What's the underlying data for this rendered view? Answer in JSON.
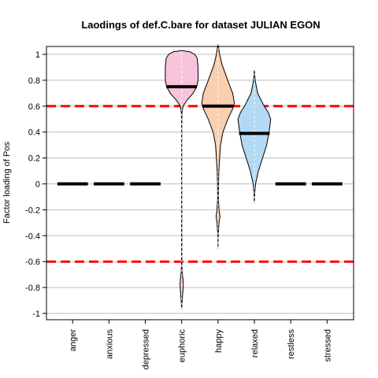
{
  "chart_data": {
    "type": "violin",
    "title": "Laodings of def.C.bare for dataset JULIAN EGON",
    "xlabel": "",
    "ylabel": "Factor loading of Pos",
    "ylim": [
      -1.05,
      1.08
    ],
    "yticks": [
      -1,
      -0.8,
      -0.6,
      -0.4,
      -0.2,
      0,
      0.2,
      0.4,
      0.6,
      0.8,
      1
    ],
    "ytick_labels": [
      "-1",
      "-0.8",
      "-0.6",
      "-0.4",
      "-0.2",
      "0",
      "0.2",
      "0.4",
      "0.6",
      "0.8",
      "1"
    ],
    "grid": true,
    "reference_lines": [
      0.6,
      -0.6
    ],
    "reference_line_color": "#ff0000",
    "categories": [
      "anger",
      "anxious",
      "depressed",
      "euphoric",
      "happy",
      "relaxed",
      "restless",
      "stressed"
    ],
    "medians": [
      0,
      0,
      0,
      0.75,
      0.6,
      0.39,
      0,
      0
    ],
    "violins": [
      {
        "category": "euphoric",
        "color": "#f7c4dc",
        "outline": "#000000",
        "profile": [
          [
            -0.97,
            0.0
          ],
          [
            -0.9,
            0.03
          ],
          [
            -0.82,
            0.08
          ],
          [
            -0.78,
            0.1
          ],
          [
            -0.74,
            0.08
          ],
          [
            -0.68,
            0.03
          ],
          [
            -0.62,
            0.01
          ],
          [
            0.0,
            0.005
          ],
          [
            0.45,
            0.005
          ],
          [
            0.55,
            0.02
          ],
          [
            0.6,
            0.08
          ],
          [
            0.65,
            0.35
          ],
          [
            0.7,
            0.7
          ],
          [
            0.75,
            0.92
          ],
          [
            0.8,
            1.0
          ],
          [
            0.9,
            1.0
          ],
          [
            0.97,
            0.95
          ],
          [
            1.0,
            0.8
          ],
          [
            1.02,
            0.5
          ],
          [
            1.03,
            0.0
          ]
        ]
      },
      {
        "category": "happy",
        "color": "#f9cfb0",
        "outline": "#000000",
        "profile": [
          [
            -0.5,
            0.0
          ],
          [
            -0.4,
            0.01
          ],
          [
            -0.3,
            0.06
          ],
          [
            -0.25,
            0.12
          ],
          [
            -0.2,
            0.06
          ],
          [
            -0.1,
            0.02
          ],
          [
            0.0,
            0.03
          ],
          [
            0.1,
            0.05
          ],
          [
            0.2,
            0.1
          ],
          [
            0.3,
            0.15
          ],
          [
            0.4,
            0.3
          ],
          [
            0.5,
            0.6
          ],
          [
            0.58,
            0.9
          ],
          [
            0.62,
            1.0
          ],
          [
            0.7,
            0.9
          ],
          [
            0.78,
            0.65
          ],
          [
            0.85,
            0.45
          ],
          [
            0.92,
            0.25
          ],
          [
            1.0,
            0.1
          ],
          [
            1.08,
            0.0
          ]
        ]
      },
      {
        "category": "relaxed",
        "color": "#b3d9f5",
        "outline": "#000000",
        "profile": [
          [
            -0.15,
            0.0
          ],
          [
            -0.08,
            0.02
          ],
          [
            0.0,
            0.07
          ],
          [
            0.1,
            0.25
          ],
          [
            0.2,
            0.5
          ],
          [
            0.3,
            0.75
          ],
          [
            0.4,
            0.9
          ],
          [
            0.5,
            1.0
          ],
          [
            0.55,
            0.85
          ],
          [
            0.6,
            0.6
          ],
          [
            0.7,
            0.2
          ],
          [
            0.8,
            0.05
          ],
          [
            0.88,
            0.0
          ]
        ]
      }
    ]
  }
}
